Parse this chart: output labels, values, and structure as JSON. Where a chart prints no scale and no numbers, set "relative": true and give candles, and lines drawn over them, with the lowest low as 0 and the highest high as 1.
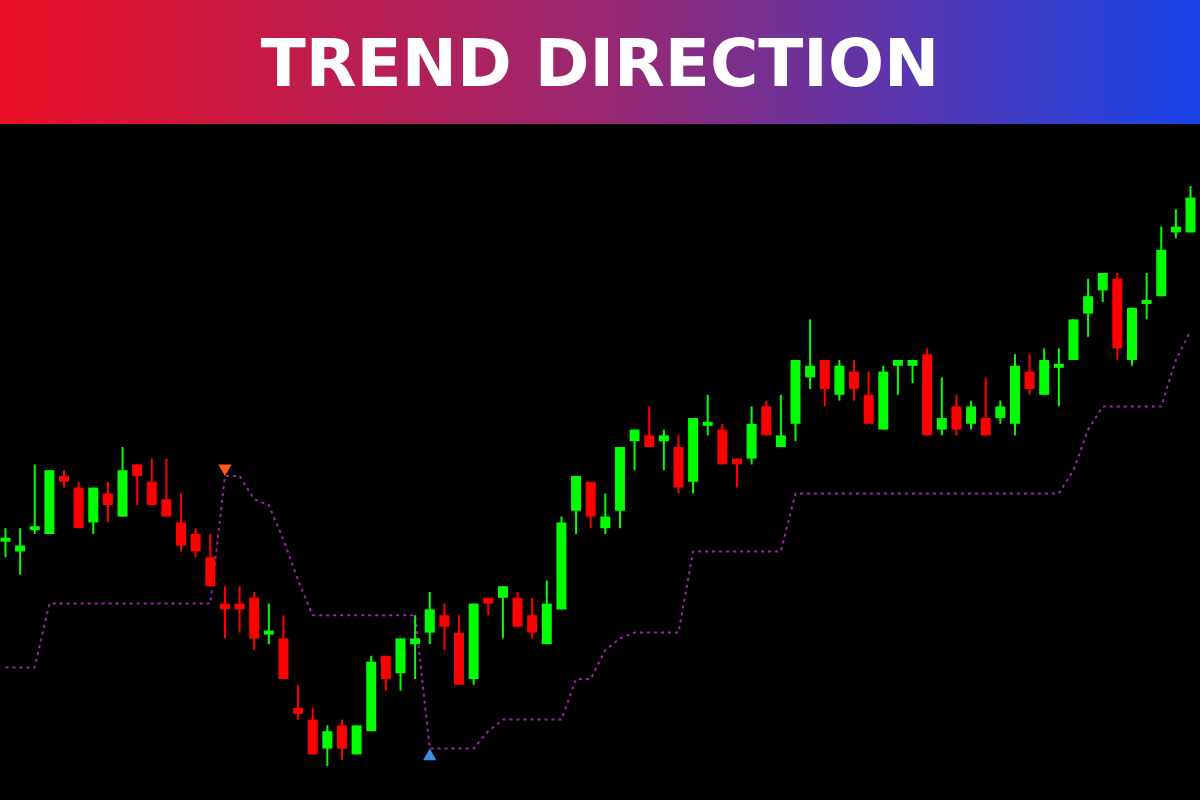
{
  "chart_data": {
    "type": "candlestick",
    "title": "TREND DIRECTION",
    "relative": true,
    "categories": [
      null,
      null,
      null,
      null,
      null,
      null,
      null,
      null,
      null,
      null,
      null,
      null,
      null,
      null,
      null,
      null,
      null,
      null,
      null,
      null,
      null,
      null,
      null,
      null,
      null,
      null,
      null,
      null,
      null,
      null,
      null,
      null,
      null,
      null,
      null,
      null,
      null,
      null,
      null,
      null,
      null,
      null,
      null,
      null,
      null,
      null,
      null,
      null,
      null,
      null,
      null,
      null,
      null,
      null,
      null,
      null,
      null,
      null,
      null,
      null,
      null,
      null,
      null,
      null,
      null,
      null,
      null,
      null,
      null,
      null,
      null,
      null,
      null,
      null,
      null,
      null,
      null,
      null,
      null,
      null,
      null,
      null
    ],
    "ohlc": [
      [
        0.39,
        0.41,
        0.36,
        0.39
      ],
      [
        0.37,
        0.41,
        0.33,
        0.38
      ],
      [
        0.41,
        0.52,
        0.4,
        0.41
      ],
      [
        0.4,
        0.51,
        0.4,
        0.51
      ],
      [
        0.5,
        0.51,
        0.48,
        0.49
      ],
      [
        0.48,
        0.49,
        0.41,
        0.41
      ],
      [
        0.42,
        0.48,
        0.4,
        0.48
      ],
      [
        0.47,
        0.49,
        0.42,
        0.45
      ],
      [
        0.43,
        0.55,
        0.43,
        0.51
      ],
      [
        0.52,
        0.52,
        0.45,
        0.5
      ],
      [
        0.49,
        0.53,
        0.45,
        0.45
      ],
      [
        0.46,
        0.53,
        0.43,
        0.43
      ],
      [
        0.42,
        0.47,
        0.37,
        0.38
      ],
      [
        0.4,
        0.41,
        0.36,
        0.37
      ],
      [
        0.36,
        0.4,
        0.31,
        0.31
      ],
      [
        0.28,
        0.31,
        0.22,
        0.27
      ],
      [
        0.28,
        0.31,
        0.23,
        0.27
      ],
      [
        0.29,
        0.3,
        0.2,
        0.22
      ],
      [
        0.23,
        0.28,
        0.21,
        0.23
      ],
      [
        0.22,
        0.26,
        0.15,
        0.15
      ],
      [
        0.1,
        0.14,
        0.08,
        0.09
      ],
      [
        0.08,
        0.1,
        0.02,
        0.02
      ],
      [
        0.03,
        0.07,
        0.0,
        0.06
      ],
      [
        0.07,
        0.08,
        0.01,
        0.03
      ],
      [
        0.02,
        0.07,
        0.02,
        0.07
      ],
      [
        0.06,
        0.19,
        0.06,
        0.18
      ],
      [
        0.19,
        0.19,
        0.13,
        0.15
      ],
      [
        0.16,
        0.22,
        0.13,
        0.22
      ],
      [
        0.21,
        0.26,
        0.15,
        0.22
      ],
      [
        0.23,
        0.3,
        0.21,
        0.27
      ],
      [
        0.26,
        0.28,
        0.2,
        0.24
      ],
      [
        0.23,
        0.26,
        0.14,
        0.14
      ],
      [
        0.15,
        0.28,
        0.14,
        0.28
      ],
      [
        0.29,
        0.29,
        0.26,
        0.28
      ],
      [
        0.29,
        0.31,
        0.22,
        0.31
      ],
      [
        0.29,
        0.3,
        0.24,
        0.24
      ],
      [
        0.26,
        0.29,
        0.22,
        0.23
      ],
      [
        0.21,
        0.32,
        0.21,
        0.28
      ],
      [
        0.27,
        0.43,
        0.27,
        0.42
      ],
      [
        0.44,
        0.5,
        0.4,
        0.5
      ],
      [
        0.49,
        0.49,
        0.41,
        0.43
      ],
      [
        0.41,
        0.47,
        0.4,
        0.43
      ],
      [
        0.44,
        0.55,
        0.41,
        0.55
      ],
      [
        0.56,
        0.58,
        0.51,
        0.58
      ],
      [
        0.57,
        0.62,
        0.55,
        0.55
      ],
      [
        0.56,
        0.58,
        0.51,
        0.57
      ],
      [
        0.55,
        0.57,
        0.47,
        0.48
      ],
      [
        0.49,
        0.6,
        0.47,
        0.6
      ],
      [
        0.59,
        0.64,
        0.57,
        0.59
      ],
      [
        0.58,
        0.59,
        0.52,
        0.52
      ],
      [
        0.53,
        0.53,
        0.48,
        0.52
      ],
      [
        0.53,
        0.62,
        0.52,
        0.59
      ],
      [
        0.62,
        0.63,
        0.57,
        0.57
      ],
      [
        0.55,
        0.64,
        0.55,
        0.57
      ],
      [
        0.59,
        0.7,
        0.56,
        0.7
      ],
      [
        0.67,
        0.77,
        0.65,
        0.69
      ],
      [
        0.7,
        0.7,
        0.62,
        0.65
      ],
      [
        0.64,
        0.7,
        0.63,
        0.69
      ],
      [
        0.68,
        0.7,
        0.63,
        0.65
      ],
      [
        0.64,
        0.68,
        0.59,
        0.59
      ],
      [
        0.58,
        0.69,
        0.58,
        0.68
      ],
      [
        0.69,
        0.7,
        0.64,
        0.7
      ],
      [
        0.69,
        0.7,
        0.66,
        0.7
      ],
      [
        0.71,
        0.72,
        0.57,
        0.57
      ],
      [
        0.58,
        0.67,
        0.57,
        0.6
      ],
      [
        0.62,
        0.64,
        0.57,
        0.58
      ],
      [
        0.59,
        0.63,
        0.58,
        0.62
      ],
      [
        0.6,
        0.67,
        0.57,
        0.57
      ],
      [
        0.6,
        0.63,
        0.59,
        0.62
      ],
      [
        0.59,
        0.71,
        0.57,
        0.69
      ],
      [
        0.68,
        0.71,
        0.64,
        0.65
      ],
      [
        0.64,
        0.72,
        0.64,
        0.7
      ],
      [
        0.69,
        0.72,
        0.62,
        0.69
      ],
      [
        0.7,
        0.77,
        0.7,
        0.77
      ],
      [
        0.78,
        0.84,
        0.74,
        0.81
      ],
      [
        0.82,
        0.85,
        0.8,
        0.85
      ],
      [
        0.84,
        0.85,
        0.7,
        0.72
      ],
      [
        0.7,
        0.79,
        0.69,
        0.79
      ],
      [
        0.8,
        0.85,
        0.77,
        0.8
      ],
      [
        0.81,
        0.93,
        0.81,
        0.89
      ],
      [
        0.92,
        0.96,
        0.91,
        0.93
      ],
      [
        0.92,
        1.0,
        0.92,
        0.98
      ]
    ],
    "colors": [
      "#00ff00",
      "#00ff00",
      "#00ff00",
      "#00ff00",
      "#ff0000",
      "#ff0000",
      "#00ff00",
      "#ff0000",
      "#00ff00",
      "#ff0000",
      "#ff0000",
      "#ff0000",
      "#ff0000",
      "#ff0000",
      "#ff0000",
      "#ff0000",
      "#ff0000",
      "#ff0000",
      "#00ff00",
      "#ff0000",
      "#ff0000",
      "#ff0000",
      "#00ff00",
      "#ff0000",
      "#00ff00",
      "#00ff00",
      "#ff0000",
      "#00ff00",
      "#00ff00",
      "#00ff00",
      "#ff0000",
      "#ff0000",
      "#00ff00",
      "#ff0000",
      "#00ff00",
      "#ff0000",
      "#ff0000",
      "#00ff00",
      "#00ff00",
      "#00ff00",
      "#ff0000",
      "#00ff00",
      "#00ff00",
      "#00ff00",
      "#ff0000",
      "#00ff00",
      "#ff0000",
      "#00ff00",
      "#00ff00",
      "#ff0000",
      "#ff0000",
      "#00ff00",
      "#ff0000",
      "#00ff00",
      "#00ff00",
      "#00ff00",
      "#ff0000",
      "#00ff00",
      "#ff0000",
      "#ff0000",
      "#00ff00",
      "#00ff00",
      "#00ff00",
      "#ff0000",
      "#00ff00",
      "#ff0000",
      "#00ff00",
      "#ff0000",
      "#00ff00",
      "#00ff00",
      "#ff0000",
      "#00ff00",
      "#00ff00",
      "#00ff00",
      "#00ff00",
      "#00ff00",
      "#ff0000",
      "#00ff00",
      "#00ff00",
      "#00ff00",
      "#00ff00",
      "#00ff00"
    ],
    "series": [
      {
        "type": "line",
        "line_style": "dotted",
        "color": "#a020b0",
        "values": [
          0.17,
          0.17,
          0.17,
          0.28,
          0.28,
          0.28,
          0.28,
          0.28,
          0.28,
          0.28,
          0.28,
          0.28,
          0.28,
          0.28,
          0.28,
          0.5,
          0.5,
          0.46,
          0.45,
          0.39,
          0.32,
          0.26,
          0.26,
          0.26,
          0.26,
          0.26,
          0.26,
          0.26,
          0.26,
          0.03,
          0.03,
          0.03,
          0.03,
          0.06,
          0.08,
          0.08,
          0.08,
          0.08,
          0.08,
          0.15,
          0.15,
          0.2,
          0.22,
          0.23,
          0.23,
          0.23,
          0.23,
          0.37,
          0.37,
          0.37,
          0.37,
          0.37,
          0.37,
          0.37,
          0.47,
          0.47,
          0.47,
          0.47,
          0.47,
          0.47,
          0.47,
          0.47,
          0.47,
          0.47,
          0.47,
          0.47,
          0.47,
          0.47,
          0.47,
          0.47,
          0.47,
          0.47,
          0.47,
          0.51,
          0.58,
          0.62,
          0.62,
          0.62,
          0.62,
          0.62,
          0.7,
          0.75
        ]
      },
      {
        "type": "scatter",
        "marker": "triangle-down",
        "color": "#ff5a1e",
        "values": [
          null,
          null,
          null,
          null,
          null,
          null,
          null,
          null,
          null,
          null,
          null,
          null,
          null,
          null,
          null,
          0.51,
          null,
          null,
          null,
          null,
          null,
          null,
          null,
          null,
          null,
          null,
          null,
          null,
          null,
          null,
          null,
          null,
          null,
          null,
          null,
          null,
          null,
          null,
          null,
          null,
          null,
          null,
          null,
          null,
          null,
          null,
          null,
          null,
          null,
          null,
          null,
          null,
          null,
          null,
          null,
          null,
          null,
          null,
          null,
          null,
          null,
          null,
          null,
          null,
          null,
          null,
          null,
          null,
          null,
          null,
          null,
          null,
          null,
          null,
          null,
          null,
          null,
          null,
          null,
          null,
          null,
          null
        ]
      },
      {
        "type": "scatter",
        "marker": "triangle",
        "color": "#3a8fe0",
        "values": [
          null,
          null,
          null,
          null,
          null,
          null,
          null,
          null,
          null,
          null,
          null,
          null,
          null,
          null,
          null,
          null,
          null,
          null,
          null,
          null,
          null,
          null,
          null,
          null,
          null,
          null,
          null,
          null,
          null,
          0.02,
          null,
          null,
          null,
          null,
          null,
          null,
          null,
          null,
          null,
          null,
          null,
          null,
          null,
          null,
          null,
          null,
          null,
          null,
          null,
          null,
          null,
          null,
          null,
          null,
          null,
          null,
          null,
          null,
          null,
          null,
          null,
          null,
          null,
          null,
          null,
          null,
          null,
          null,
          null,
          null,
          null,
          null,
          null,
          null,
          null,
          null,
          null,
          null,
          null,
          null,
          null,
          null
        ]
      }
    ]
  }
}
